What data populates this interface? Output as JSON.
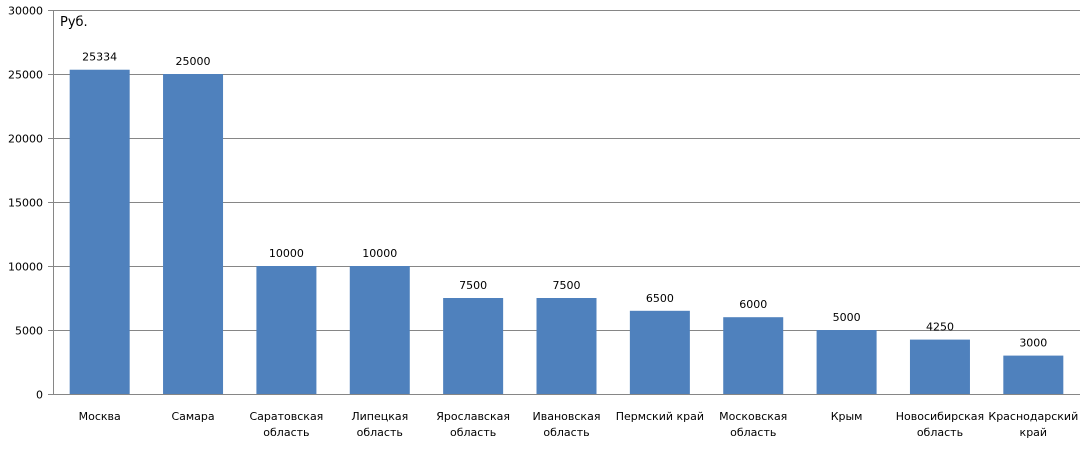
{
  "chart_data": {
    "type": "bar",
    "unit_label": "Руб.",
    "categories": [
      [
        "Москва"
      ],
      [
        "Самара"
      ],
      [
        "Саратовская",
        "область"
      ],
      [
        "Липецкая",
        "область"
      ],
      [
        "Ярославская",
        "область"
      ],
      [
        "Ивановская",
        "область"
      ],
      [
        "Пермский край"
      ],
      [
        "Московская",
        "область"
      ],
      [
        "Крым"
      ],
      [
        "Новосибирская",
        "область"
      ],
      [
        "Краснодарский",
        "край"
      ]
    ],
    "values": [
      25334,
      25000,
      10000,
      10000,
      7500,
      7500,
      6500,
      6000,
      5000,
      4250,
      3000
    ],
    "ylim": [
      0,
      30000
    ],
    "yticks": [
      0,
      5000,
      10000,
      15000,
      20000,
      25000,
      30000
    ],
    "grid": true,
    "legend": "none",
    "bar_color": "#4f81bd",
    "grid_color": "#868686"
  }
}
